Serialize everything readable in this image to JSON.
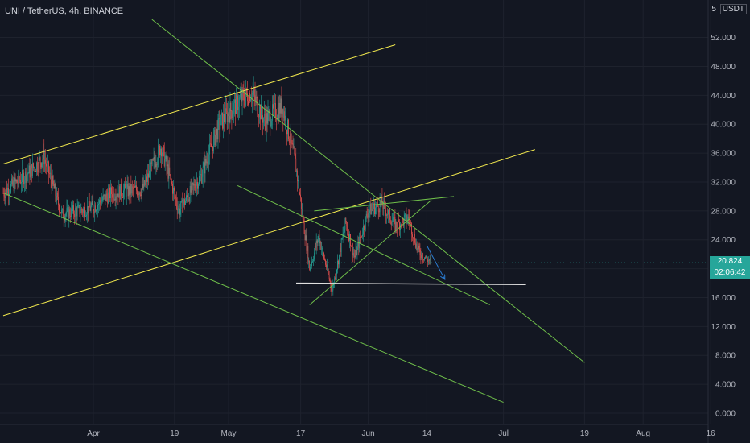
{
  "header": {
    "title": "UNI / TetherUS, 4h, BINANCE"
  },
  "price_axis": {
    "scale_marker": "5",
    "unit": "USDT"
  },
  "current": {
    "price": "20.824",
    "countdown": "02:06:42"
  },
  "colors": {
    "background": "#131722",
    "up": "#26a69a",
    "down": "#ef5350",
    "green_line": "#6fbf4a",
    "yellow_line": "#f2e94e",
    "blue_line": "#2a7dd4",
    "white_line": "#e0e0e0"
  },
  "chart_data": {
    "type": "candlestick",
    "title": "UNI / TetherUS, 4h, BINANCE",
    "ylim": [
      0,
      55
    ],
    "y_ticks": [
      "52.000",
      "48.000",
      "44.000",
      "40.000",
      "36.000",
      "32.000",
      "28.000",
      "24.000",
      "20.000",
      "16.000",
      "12.000",
      "8.000",
      "4.000",
      "0.000"
    ],
    "x_ticks": [
      "Apr",
      "19",
      "May",
      "17",
      "Jun",
      "14",
      "Jul",
      "19",
      "Aug",
      "16"
    ],
    "price_path": [
      {
        "date": "2021-03-12",
        "price": 30.5
      },
      {
        "date": "2021-03-18",
        "price": 33.5
      },
      {
        "date": "2021-03-21",
        "price": 35.5
      },
      {
        "date": "2021-03-25",
        "price": 27.5
      },
      {
        "date": "2021-04-01",
        "price": 28.5
      },
      {
        "date": "2021-04-05",
        "price": 30.5
      },
      {
        "date": "2021-04-12",
        "price": 31.0
      },
      {
        "date": "2021-04-16",
        "price": 37.0
      },
      {
        "date": "2021-04-20",
        "price": 28.0
      },
      {
        "date": "2021-04-25",
        "price": 33.0
      },
      {
        "date": "2021-04-29",
        "price": 40.0
      },
      {
        "date": "2021-05-03",
        "price": 43.0
      },
      {
        "date": "2021-05-06",
        "price": 44.5
      },
      {
        "date": "2021-05-09",
        "price": 40.5
      },
      {
        "date": "2021-05-13",
        "price": 42.5
      },
      {
        "date": "2021-05-16",
        "price": 34.0
      },
      {
        "date": "2021-05-19",
        "price": 20.0
      },
      {
        "date": "2021-05-21",
        "price": 24.5
      },
      {
        "date": "2021-05-24",
        "price": 17.0
      },
      {
        "date": "2021-05-27",
        "price": 26.5
      },
      {
        "date": "2021-05-29",
        "price": 21.5
      },
      {
        "date": "2021-06-01",
        "price": 28.0
      },
      {
        "date": "2021-06-04",
        "price": 29.0
      },
      {
        "date": "2021-06-07",
        "price": 26.0
      },
      {
        "date": "2021-06-10",
        "price": 27.0
      },
      {
        "date": "2021-06-12",
        "price": 22.5
      },
      {
        "date": "2021-06-15",
        "price": 20.8
      }
    ],
    "drawings": [
      {
        "type": "trendline",
        "color": "yellow",
        "points": [
          [
            "2021-03-12",
            34.5
          ],
          [
            "2021-06-07",
            51.0
          ]
        ]
      },
      {
        "type": "trendline",
        "color": "yellow",
        "points": [
          [
            "2021-03-12",
            13.5
          ],
          [
            "2021-07-08",
            36.5
          ]
        ]
      },
      {
        "type": "trendline",
        "color": "green",
        "points": [
          [
            "2021-04-14",
            54.5
          ],
          [
            "2021-07-19",
            7.0
          ]
        ]
      },
      {
        "type": "trendline",
        "color": "green",
        "points": [
          [
            "2021-03-12",
            30.5
          ],
          [
            "2021-07-01",
            1.5
          ]
        ]
      },
      {
        "type": "trendline",
        "color": "green",
        "points": [
          [
            "2021-05-03",
            31.5
          ],
          [
            "2021-06-28",
            15.0
          ]
        ]
      },
      {
        "type": "trendline",
        "color": "green",
        "points": [
          [
            "2021-05-19",
            15.0
          ],
          [
            "2021-06-15",
            29.5
          ]
        ]
      },
      {
        "type": "trendline",
        "color": "green",
        "points": [
          [
            "2021-05-20",
            28.0
          ],
          [
            "2021-06-20",
            30.0
          ]
        ]
      },
      {
        "type": "trendline",
        "color": "white",
        "points": [
          [
            "2021-05-16",
            18.0
          ],
          [
            "2021-07-06",
            17.8
          ]
        ]
      },
      {
        "type": "arrow",
        "color": "blue",
        "points": [
          [
            "2021-06-14",
            23.2
          ],
          [
            "2021-06-18",
            18.5
          ]
        ]
      }
    ]
  }
}
